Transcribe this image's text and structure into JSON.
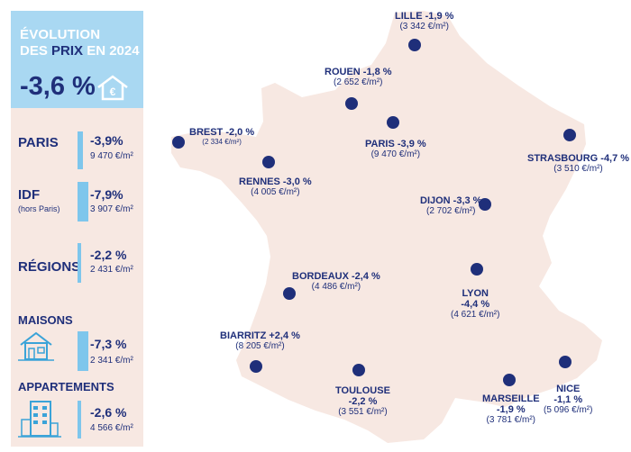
{
  "panel": {
    "title_line1": "ÉVOLUTION",
    "title_line2_a": "DES ",
    "title_line2_b": "PRIX",
    "title_line2_c": " EN 2024",
    "overall": "-3,6 %",
    "rows": [
      {
        "label": "PARIS",
        "sub": "",
        "pct": "-3,9%",
        "price": "9 470 €/m²"
      },
      {
        "label": "IDF",
        "sub": "(hors Paris)",
        "pct": "-7,9%",
        "price": "3 907 €/m²"
      },
      {
        "label": "RÉGIONS",
        "sub": "",
        "pct": "-2,2 %",
        "price": "2 431 €/m²"
      },
      {
        "label": "MAISONS",
        "sub": "",
        "pct": "-7,3 %",
        "price": "2 341 €/m²"
      },
      {
        "label": "APPARTEMENTS",
        "sub": "",
        "pct": "-2,6 %",
        "price": "4 566 €/m²"
      }
    ]
  },
  "cities": [
    {
      "name": "LILLE -1,9 %",
      "price": "(3 342 €/m²)"
    },
    {
      "name": "ROUEN -1,8 %",
      "price": "(2 652 €/m²)"
    },
    {
      "name": "BREST -2,0 %",
      "price": "(2 334 €/m²)"
    },
    {
      "name": "PARIS -3,9 %",
      "price": "(9 470 €/m²)"
    },
    {
      "name": "STRASBOURG -4,7 %",
      "price": "(3 510 €/m²)"
    },
    {
      "name": "RENNES -3,0 %",
      "price": "(4 005 €/m²)"
    },
    {
      "name": "DIJON -3,3 %",
      "price": "(2 702 €/m²)"
    },
    {
      "name": "BORDEAUX -2,4 %",
      "price": "(4 486 €/m²)"
    },
    {
      "name_line1": "LYON",
      "name_line2": "-4,4 %",
      "price": "(4 621 €/m²)"
    },
    {
      "name": "BIARRITZ +2,4 %",
      "price": "(8 205 €/m²)"
    },
    {
      "name_line1": "TOULOUSE",
      "name_line2": "-2,2 %",
      "price": "(3 551 €/m²)"
    },
    {
      "name_line1": "MARSEILLE",
      "name_line2": "-1,9 %",
      "price": "(3 781 €/m²)"
    },
    {
      "name_line1": "NICE",
      "name_line2": "-1,1 %",
      "price": "(5 096 €/m²)"
    }
  ],
  "colors": {
    "navy": "#1f2f7a",
    "light_blue": "#a9d8f2",
    "bar_blue": "#7ec6ec",
    "map_fill": "#f7e8e2"
  }
}
